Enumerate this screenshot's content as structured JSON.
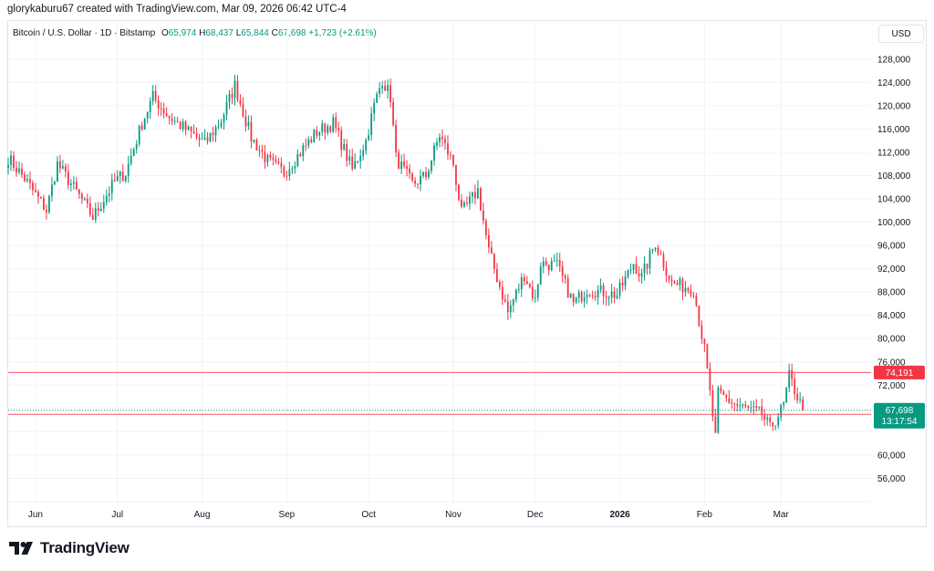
{
  "attribution": "glorykaburu67 created with TradingView.com, Mar 09, 2026 06:42 UTC-4",
  "legend": {
    "symbol": "Bitcoin / U.S. Dollar · 1D · Bitstamp",
    "o_label": "O",
    "o_value": "65,974",
    "h_label": "H",
    "h_value": "68,437",
    "l_label": "L",
    "l_value": "65,844",
    "c_label": "C",
    "c_value": "67,698",
    "change": "+1,723 (+2.61%)"
  },
  "currency_button": "USD",
  "logo_text": "TradingView",
  "colors": {
    "up": "#089981",
    "down": "#f23645",
    "hline": "#f7525f",
    "grid": "#f0f3fa",
    "last_price": "#089981"
  },
  "chart_data": {
    "type": "candlestick",
    "title": "Bitcoin / U.S. Dollar · 1D · Bitstamp",
    "ylim": [
      52000,
      130000
    ],
    "y_ticks": [
      {
        "value": 128000,
        "label": "128,000"
      },
      {
        "value": 124000,
        "label": "124,000"
      },
      {
        "value": 120000,
        "label": "120,000"
      },
      {
        "value": 116000,
        "label": "116,000"
      },
      {
        "value": 112000,
        "label": "112,000"
      },
      {
        "value": 108000,
        "label": "108,000"
      },
      {
        "value": 104000,
        "label": "104,000"
      },
      {
        "value": 100000,
        "label": "100,000"
      },
      {
        "value": 96000,
        "label": "96,000"
      },
      {
        "value": 92000,
        "label": "92,000"
      },
      {
        "value": 88000,
        "label": "88,000"
      },
      {
        "value": 84000,
        "label": "84,000"
      },
      {
        "value": 80000,
        "label": "80,000"
      },
      {
        "value": 76000,
        "label": "76,000"
      },
      {
        "value": 72000,
        "label": "72,000"
      },
      {
        "value": 60000,
        "label": "60,000"
      },
      {
        "value": 56000,
        "label": "56,000"
      }
    ],
    "x_ticks": [
      {
        "date": "2025-06-01",
        "label": "Jun",
        "bold": false
      },
      {
        "date": "2025-07-01",
        "label": "Jul",
        "bold": false
      },
      {
        "date": "2025-08-01",
        "label": "Aug",
        "bold": false
      },
      {
        "date": "2025-09-01",
        "label": "Sep",
        "bold": false
      },
      {
        "date": "2025-10-01",
        "label": "Oct",
        "bold": false
      },
      {
        "date": "2025-11-01",
        "label": "Nov",
        "bold": false
      },
      {
        "date": "2025-12-01",
        "label": "Dec",
        "bold": false
      },
      {
        "date": "2026-01-01",
        "label": "2026",
        "bold": true
      },
      {
        "date": "2026-02-01",
        "label": "Feb",
        "bold": false
      },
      {
        "date": "2026-03-01",
        "label": "Mar",
        "bold": false
      }
    ],
    "x_range": [
      "2025-05-22",
      "2026-04-03"
    ],
    "horizontal_lines": [
      {
        "value": 74191,
        "label": "74,191"
      },
      {
        "value": 67000,
        "label": "67,000"
      }
    ],
    "last_price": {
      "value": 67698,
      "label": "67,698",
      "countdown": "13:17:54"
    },
    "price_path": [
      {
        "date": "2025-05-22",
        "close": 111000
      },
      {
        "date": "2025-05-28",
        "close": 107500
      },
      {
        "date": "2025-06-05",
        "close": 102000
      },
      {
        "date": "2025-06-09",
        "close": 110000
      },
      {
        "date": "2025-06-17",
        "close": 104500
      },
      {
        "date": "2025-06-22",
        "close": 100800
      },
      {
        "date": "2025-06-30",
        "close": 107000
      },
      {
        "date": "2025-07-04",
        "close": 108500
      },
      {
        "date": "2025-07-10",
        "close": 117000
      },
      {
        "date": "2025-07-14",
        "close": 121500
      },
      {
        "date": "2025-07-20",
        "close": 118000
      },
      {
        "date": "2025-08-02",
        "close": 113500
      },
      {
        "date": "2025-08-08",
        "close": 117500
      },
      {
        "date": "2025-08-13",
        "close": 123500
      },
      {
        "date": "2025-08-19",
        "close": 114500
      },
      {
        "date": "2025-08-25",
        "close": 110500
      },
      {
        "date": "2025-08-31",
        "close": 108500
      },
      {
        "date": "2025-09-12",
        "close": 115500
      },
      {
        "date": "2025-09-18",
        "close": 117000
      },
      {
        "date": "2025-09-25",
        "close": 109000
      },
      {
        "date": "2025-09-30",
        "close": 114000
      },
      {
        "date": "2025-10-03",
        "close": 120000
      },
      {
        "date": "2025-10-06",
        "close": 124500
      },
      {
        "date": "2025-10-09",
        "close": 121500
      },
      {
        "date": "2025-10-11",
        "close": 111000
      },
      {
        "date": "2025-10-17",
        "close": 106500
      },
      {
        "date": "2025-10-22",
        "close": 108000
      },
      {
        "date": "2025-10-27",
        "close": 115000
      },
      {
        "date": "2025-11-01",
        "close": 110000
      },
      {
        "date": "2025-11-04",
        "close": 101500
      },
      {
        "date": "2025-11-10",
        "close": 105500
      },
      {
        "date": "2025-11-14",
        "close": 95000
      },
      {
        "date": "2025-11-21",
        "close": 84500
      },
      {
        "date": "2025-11-27",
        "close": 91000
      },
      {
        "date": "2025-12-01",
        "close": 86500
      },
      {
        "date": "2025-12-03",
        "close": 93000
      },
      {
        "date": "2025-12-09",
        "close": 92500
      },
      {
        "date": "2025-12-15",
        "close": 86000
      },
      {
        "date": "2025-12-20",
        "close": 88500
      },
      {
        "date": "2025-12-31",
        "close": 87500
      },
      {
        "date": "2026-01-06",
        "close": 93000
      },
      {
        "date": "2026-01-09",
        "close": 90500
      },
      {
        "date": "2026-01-14",
        "close": 96500
      },
      {
        "date": "2026-01-20",
        "close": 89500
      },
      {
        "date": "2026-01-28",
        "close": 88500
      },
      {
        "date": "2026-02-01",
        "close": 78000
      },
      {
        "date": "2026-02-05",
        "close": 63000
      },
      {
        "date": "2026-02-06",
        "close": 70500
      },
      {
        "date": "2026-02-13",
        "close": 68500
      },
      {
        "date": "2026-02-22",
        "close": 67000
      },
      {
        "date": "2026-02-25",
        "close": 64500
      },
      {
        "date": "2026-03-02",
        "close": 68500
      },
      {
        "date": "2026-03-04",
        "close": 73500
      },
      {
        "date": "2026-03-09",
        "close": 67698
      }
    ]
  }
}
